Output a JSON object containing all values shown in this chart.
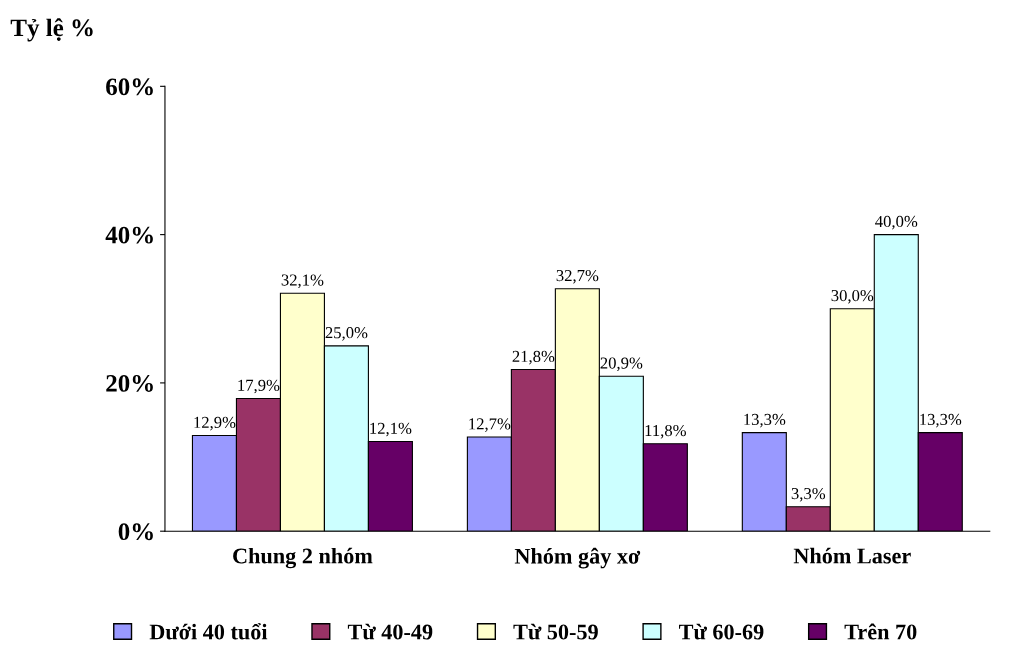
{
  "chart_data": {
    "type": "bar",
    "ylabel": "Tỷ lệ %",
    "categories": [
      "Chung 2 nhóm",
      "Nhóm gây xơ",
      "Nhóm Laser"
    ],
    "series": [
      {
        "name": "Dưới 40 tuổi",
        "color": "#9999ff",
        "values": [
          12.9,
          12.7,
          13.3
        ],
        "value_labels": [
          "12,9%",
          "12,7%",
          "13,3%"
        ]
      },
      {
        "name": "Từ 40-49",
        "color": "#993366",
        "values": [
          17.9,
          21.8,
          3.3
        ],
        "value_labels": [
          "17,9%",
          "21,8%",
          "3,3%"
        ]
      },
      {
        "name": "Từ 50-59",
        "color": "#ffffcc",
        "values": [
          32.1,
          32.7,
          30.0
        ],
        "value_labels": [
          "32,1%",
          "32,7%",
          "30,0%"
        ]
      },
      {
        "name": "Từ 60-69",
        "color": "#ccffff",
        "values": [
          25.0,
          20.9,
          40.0
        ],
        "value_labels": [
          "25,0%",
          "20,9%",
          "40,0%"
        ]
      },
      {
        "name": "Trên 70",
        "color": "#660066",
        "values": [
          12.1,
          11.8,
          13.3
        ],
        "value_labels": [
          "12,1%",
          "11,8%",
          "13,3%"
        ]
      }
    ],
    "ylim": [
      0,
      60
    ],
    "yticks": [
      {
        "value": 0,
        "label": "0%"
      },
      {
        "value": 20,
        "label": "20%"
      },
      {
        "value": 40,
        "label": "40%"
      },
      {
        "value": 60,
        "label": "60%"
      }
    ],
    "grid": false,
    "legend": "bottom"
  }
}
